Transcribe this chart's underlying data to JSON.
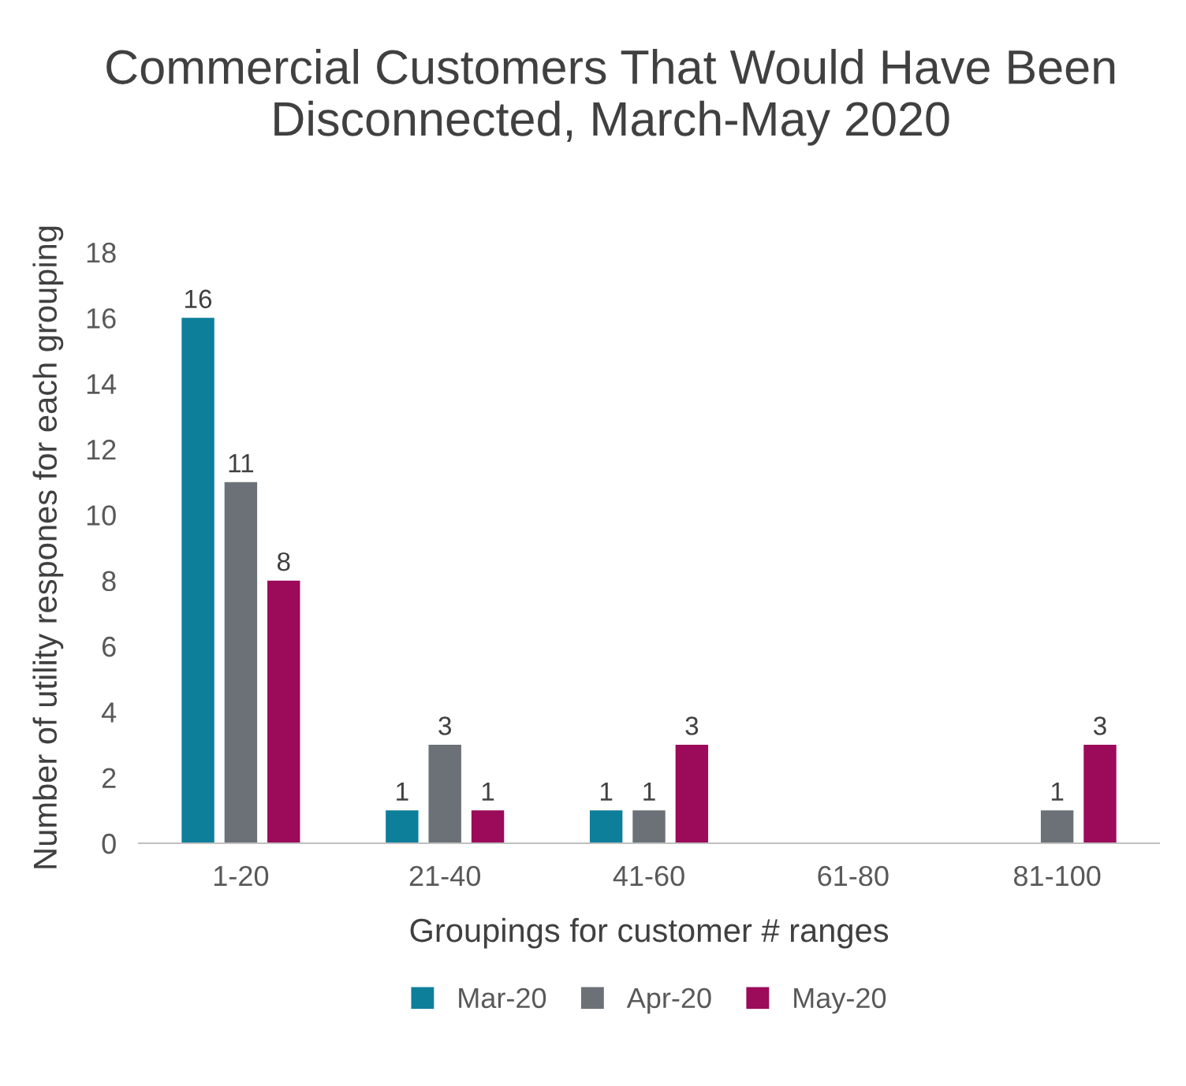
{
  "chart_data": {
    "type": "bar",
    "title": "Commercial Customers That Would Have Been Disconnected, March-May 2020",
    "xlabel": "Groupings for customer # ranges",
    "ylabel": "Number of utility respones for each grouping",
    "categories": [
      "1-20",
      "21-40",
      "41-60",
      "61-80",
      "81-100"
    ],
    "series": [
      {
        "name": "Mar-20",
        "color": "#0e7f9b",
        "values": [
          16,
          1,
          1,
          null,
          null
        ]
      },
      {
        "name": "Apr-20",
        "color": "#6b7177",
        "values": [
          11,
          3,
          1,
          null,
          1
        ]
      },
      {
        "name": "May-20",
        "color": "#9c0a5a",
        "values": [
          8,
          1,
          3,
          null,
          3
        ]
      }
    ],
    "ylim": [
      0,
      18
    ],
    "yticks": [
      0,
      2,
      4,
      6,
      8,
      10,
      12,
      14,
      16,
      18
    ],
    "data_labels": true,
    "grid": false,
    "legend": "bottom"
  }
}
